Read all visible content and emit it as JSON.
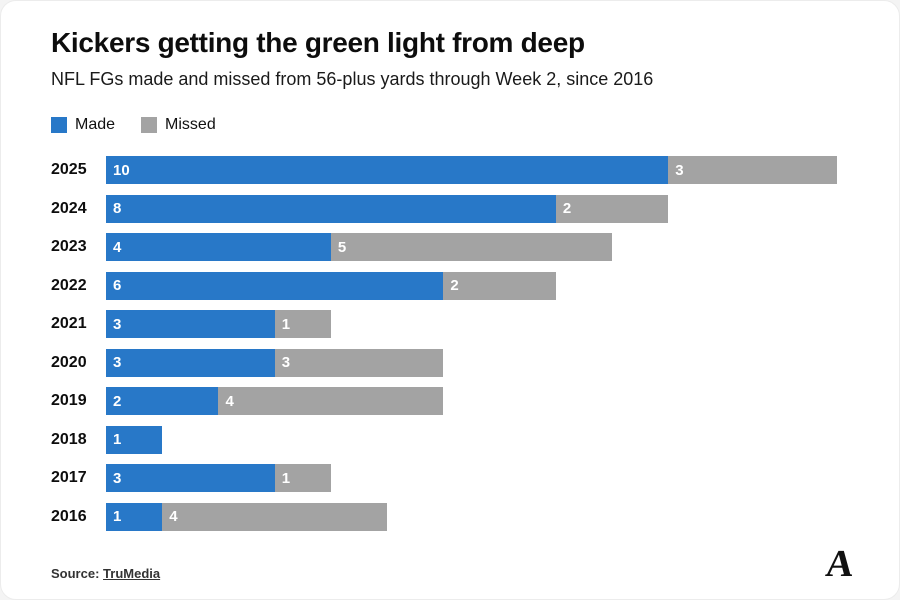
{
  "title": "Kickers getting the green light from deep",
  "subtitle": "NFL FGs made and missed from 56-plus yards through Week 2, since 2016",
  "legend": {
    "made_label": "Made",
    "missed_label": "Missed"
  },
  "colors": {
    "made": "#2878c8",
    "missed": "#a3a3a3"
  },
  "source": {
    "prefix": "Source:",
    "link_text": "TruMedia"
  },
  "logo_glyph": "A",
  "chart_data": {
    "type": "bar",
    "orientation": "horizontal",
    "stacked": true,
    "title": "Kickers getting the green light from deep",
    "subtitle": "NFL FGs made and missed from 56-plus yards through Week 2, since 2016",
    "categories": [
      "2025",
      "2024",
      "2023",
      "2022",
      "2021",
      "2020",
      "2019",
      "2018",
      "2017",
      "2016"
    ],
    "series": [
      {
        "name": "Made",
        "color": "#2878c8",
        "values": [
          10,
          8,
          4,
          6,
          3,
          3,
          2,
          1,
          3,
          1
        ]
      },
      {
        "name": "Missed",
        "color": "#a3a3a3",
        "values": [
          3,
          2,
          5,
          2,
          1,
          3,
          4,
          0,
          1,
          4
        ]
      }
    ],
    "x_axis_max_units": 13,
    "grid": false,
    "legend_position": "top-left",
    "value_labels": "inside-left-white"
  }
}
